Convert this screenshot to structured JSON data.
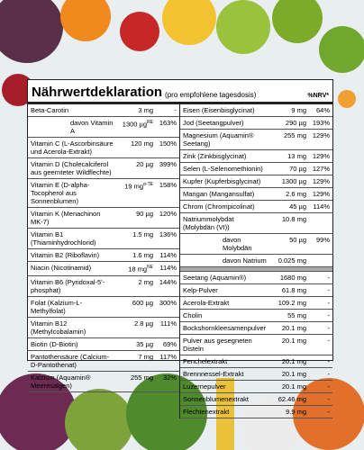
{
  "header": {
    "title": "Nährwertdeklaration",
    "subtitle": "(pro empfohlene tagesdosis)",
    "nrv_label": "%NRV*"
  },
  "table": {
    "left": [
      {
        "name": "Beta-Carotin",
        "amount": "3 mg",
        "nrv": "-"
      },
      {
        "name": "davon Vitamin A",
        "indent": true,
        "amount": "1300 µg",
        "sup": "RE",
        "nrv": "163%"
      },
      {
        "name": "Vitamin C (L-Ascorbinsäure und Acerola-Extrakt)",
        "amount": "120 mg",
        "nrv": "150%"
      },
      {
        "name": "Vitamin D (Cholecalciferol aus geernteter Wildflechte)",
        "amount": "20 µg",
        "nrv": "399%"
      },
      {
        "name": "Vitamin E (D-alpha-Tocopherol aus Sonnenblumen)",
        "amount": "19 mg",
        "sup": "α-TE",
        "nrv": "158%"
      },
      {
        "name": "Vitamin K (Menachinon MK-7)",
        "amount": "90 µg",
        "nrv": "120%"
      },
      {
        "name": "Vitamin B1 (Thiaminhydrochlorid)",
        "amount": "1.5 mg",
        "nrv": "136%"
      },
      {
        "name": "Vitamin B2 (Riboflavin)",
        "amount": "1.6 mg",
        "nrv": "114%"
      },
      {
        "name": "Niacin (Nicotinamid)",
        "amount": "18 mg",
        "sup": "NE",
        "nrv": "114%"
      },
      {
        "name": "Vitamin B6 (Pyridoxal-5'-phosphat)",
        "amount": "2 mg",
        "nrv": "144%"
      },
      {
        "name": "Folat (Kalzium-L-Methylfolat)",
        "amount": "600 µg",
        "nrv": "300%"
      },
      {
        "name": "Vitamin B12 (Methylcobalamin)",
        "amount": "2.8 µg",
        "nrv": "111%"
      },
      {
        "name": "Biotin (D-Biotin)",
        "amount": "35 µg",
        "nrv": "69%"
      },
      {
        "name": "Pantothensäure (Calcium-D-Pantothenat)",
        "amount": "7 mg",
        "nrv": "117%"
      },
      {
        "name": "Kalzium (Aquamin® Meeresalgen)",
        "amount": "255 mg",
        "nrv": "32%"
      }
    ],
    "right": [
      {
        "name": "Eisen (Eisenbisglycinat)",
        "amount": "9 mg",
        "nrv": "64%"
      },
      {
        "name": "Jod (Seetangpulver)",
        "amount": "290 µg",
        "nrv": "193%"
      },
      {
        "name": "Magnesium (Aquamin® Seetang)",
        "amount": "255 mg",
        "nrv": "129%"
      },
      {
        "name": "Zink (Zinkbisglycinat)",
        "amount": "13 mg",
        "nrv": "129%"
      },
      {
        "name": "Selen (L-Selenomethionin)",
        "amount": "70 µg",
        "nrv": "127%"
      },
      {
        "name": "Kupfer (Kupferbisglycinat)",
        "amount": "1300 µg",
        "nrv": "129%"
      },
      {
        "name": "Mangan (Mangansulfat)",
        "amount": "2.6 mg",
        "nrv": "129%"
      },
      {
        "name": "Chrom (Chrompicolinat)",
        "amount": "45 µg",
        "nrv": "114%"
      },
      {
        "name": "Natriummolybdat (Molybdän (VI))",
        "amount": "10.8 mg"
      },
      {
        "name": "davon Molybdän",
        "indent": true,
        "amount": "50 µg",
        "nrv": "99%"
      },
      {
        "name": "davon Natrium",
        "indent": true,
        "amount": "0.025 mg"
      }
    ],
    "right_extra": [
      {
        "name": "Seetang (Aquamin®)",
        "amount": "1680 mg",
        "nrv": "-"
      },
      {
        "name": "Kelp-Pulver",
        "amount": "61.8 mg",
        "nrv": "-"
      },
      {
        "name": "Acerola-Extrakt",
        "amount": "109.2 mg",
        "nrv": "-"
      },
      {
        "name": "Cholin",
        "amount": "55 mg",
        "nrv": "-"
      },
      {
        "name": "Bockshornkleesamenpulver",
        "amount": "20.1 mg",
        "nrv": "-"
      },
      {
        "name": "Pulver aus gesegneten Disteln",
        "amount": "20.1 mg",
        "nrv": "-"
      },
      {
        "name": "Fenchelextrakt",
        "amount": "20.1 mg",
        "nrv": "-"
      },
      {
        "name": "Brennnessel-Extrakt",
        "amount": "20.1 mg",
        "nrv": "-"
      },
      {
        "name": "Luzernepulver",
        "amount": "20.1 mg",
        "nrv": "-"
      },
      {
        "name": "Sonnenblumenextrakt",
        "amount": "62.46 mg",
        "nrv": "-"
      },
      {
        "name": "Flechtenextrakt",
        "amount": "9.9 mg",
        "nrv": "-"
      }
    ]
  }
}
